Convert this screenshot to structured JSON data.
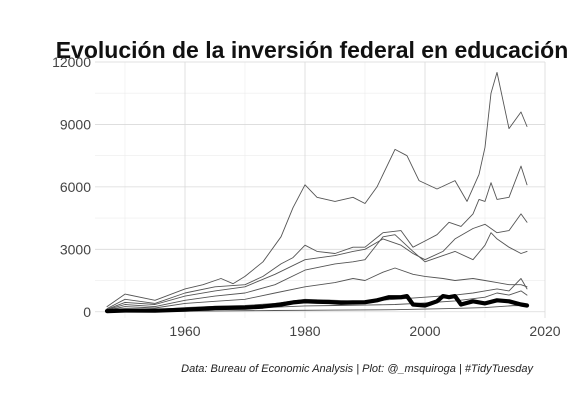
{
  "chart_data": {
    "type": "line",
    "title": "Evolución de la inversión federal en educación",
    "xlabel": "",
    "ylabel": "",
    "xlim": [
      1945,
      2020
    ],
    "ylim": [
      -300,
      12000
    ],
    "x_ticks": [
      1960,
      1980,
      2000,
      2020
    ],
    "y_ticks": [
      0,
      3000,
      6000,
      9000,
      12000
    ],
    "x_tick_labels": [
      "1960",
      "1980",
      "2000",
      "2020"
    ],
    "y_tick_labels": [
      "0",
      "3000",
      "6000",
      "9000",
      "12000"
    ],
    "grid": true,
    "legend": "none",
    "caption": "Data: Bureau of Economic Analysis | Plot: @_msquiroga | #TidyTuesday",
    "highlight_color": "#000000",
    "series_color": "#555555",
    "series": [
      {
        "highlight": false,
        "x": [
          1947,
          1950,
          1955,
          1960,
          1963,
          1966,
          1968,
          1970,
          1973,
          1976,
          1978,
          1980,
          1982,
          1985,
          1988,
          1990,
          1992,
          1995,
          1997,
          1999,
          2002,
          2005,
          2007,
          2009,
          2010,
          2011,
          2012,
          2014,
          2016,
          2017
        ],
        "y": [
          250,
          850,
          550,
          1100,
          1300,
          1600,
          1350,
          1700,
          2400,
          3600,
          5000,
          6100,
          5500,
          5300,
          5500,
          5200,
          6000,
          7800,
          7500,
          6300,
          5900,
          6300,
          5300,
          6600,
          7900,
          10500,
          11500,
          8800,
          9600,
          8900
        ]
      },
      {
        "highlight": false,
        "x": [
          1947,
          1950,
          1955,
          1960,
          1965,
          1970,
          1973,
          1976,
          1978,
          1980,
          1982,
          1985,
          1988,
          1990,
          1993,
          1996,
          1998,
          2000,
          2002,
          2004,
          2006,
          2008,
          2009,
          2010,
          2011,
          2012,
          2014,
          2016,
          2017
        ],
        "y": [
          150,
          600,
          400,
          900,
          1200,
          1300,
          1700,
          2300,
          2600,
          3200,
          2900,
          2800,
          3100,
          3100,
          3800,
          3900,
          3100,
          3400,
          3700,
          4300,
          4100,
          4700,
          5400,
          5300,
          6200,
          5400,
          5500,
          7000,
          6100
        ]
      },
      {
        "highlight": false,
        "x": [
          1947,
          1950,
          1955,
          1960,
          1965,
          1970,
          1975,
          1980,
          1985,
          1988,
          1990,
          1993,
          1996,
          1998,
          2000,
          2003,
          2005,
          2008,
          2010,
          2012,
          2014,
          2016,
          2017
        ],
        "y": [
          120,
          450,
          350,
          750,
          1000,
          1200,
          1800,
          2500,
          2700,
          2900,
          3000,
          3500,
          3200,
          2800,
          2500,
          2900,
          3500,
          4000,
          4200,
          3800,
          3900,
          4700,
          4300
        ]
      },
      {
        "highlight": false,
        "x": [
          1947,
          1950,
          1955,
          1960,
          1965,
          1970,
          1975,
          1980,
          1985,
          1988,
          1990,
          1993,
          1995,
          1998,
          2000,
          2003,
          2005,
          2008,
          2010,
          2011,
          2012,
          2014,
          2016,
          2017
        ],
        "y": [
          100,
          350,
          250,
          550,
          750,
          900,
          1300,
          2000,
          2300,
          2400,
          2500,
          3600,
          3700,
          2900,
          2400,
          2700,
          2900,
          2500,
          3200,
          3800,
          3500,
          3100,
          2800,
          2900
        ]
      },
      {
        "highlight": false,
        "x": [
          1947,
          1950,
          1955,
          1960,
          1965,
          1970,
          1975,
          1980,
          1985,
          1988,
          1990,
          1993,
          1995,
          1998,
          2000,
          2003,
          2005,
          2008,
          2010,
          2012,
          2014,
          2016,
          2017
        ],
        "y": [
          80,
          250,
          180,
          400,
          500,
          600,
          900,
          1200,
          1400,
          1600,
          1500,
          1900,
          2100,
          1800,
          1700,
          1600,
          1500,
          1600,
          1500,
          1400,
          1300,
          1300,
          1200
        ]
      },
      {
        "highlight": false,
        "x": [
          1947,
          1950,
          1955,
          1960,
          1965,
          1970,
          1975,
          1980,
          1985,
          1990,
          1995,
          2000,
          2005,
          2008,
          2010,
          2012,
          2014,
          2016,
          2017
        ],
        "y": [
          40,
          120,
          100,
          200,
          260,
          300,
          400,
          600,
          550,
          500,
          600,
          700,
          800,
          900,
          1000,
          1100,
          1000,
          1600,
          1100
        ]
      },
      {
        "highlight": false,
        "x": [
          1947,
          1950,
          1955,
          1960,
          1965,
          1970,
          1975,
          1980,
          1985,
          1990,
          1995,
          2000,
          2005,
          2010,
          2012,
          2014,
          2016,
          2017
        ],
        "y": [
          20,
          60,
          50,
          120,
          150,
          170,
          220,
          280,
          300,
          320,
          350,
          420,
          520,
          700,
          900,
          800,
          1000,
          800
        ]
      },
      {
        "highlight": false,
        "x": [
          1947,
          1955,
          1965,
          1975,
          1985,
          1995,
          2005,
          2010,
          2015,
          2017
        ],
        "y": [
          10,
          20,
          40,
          60,
          80,
          100,
          160,
          200,
          300,
          280
        ]
      },
      {
        "highlight": true,
        "x": [
          1947,
          1950,
          1955,
          1960,
          1965,
          1970,
          1973,
          1976,
          1978,
          1980,
          1982,
          1984,
          1986,
          1988,
          1990,
          1992,
          1994,
          1996,
          1997,
          1998,
          2000,
          2002,
          2003,
          2004,
          2005,
          2006,
          2008,
          2010,
          2012,
          2014,
          2016,
          2017
        ],
        "y": [
          30,
          60,
          50,
          100,
          180,
          200,
          250,
          350,
          450,
          500,
          480,
          470,
          430,
          450,
          460,
          550,
          700,
          700,
          750,
          350,
          300,
          500,
          750,
          700,
          750,
          350,
          500,
          400,
          550,
          500,
          350,
          300
        ]
      }
    ]
  }
}
